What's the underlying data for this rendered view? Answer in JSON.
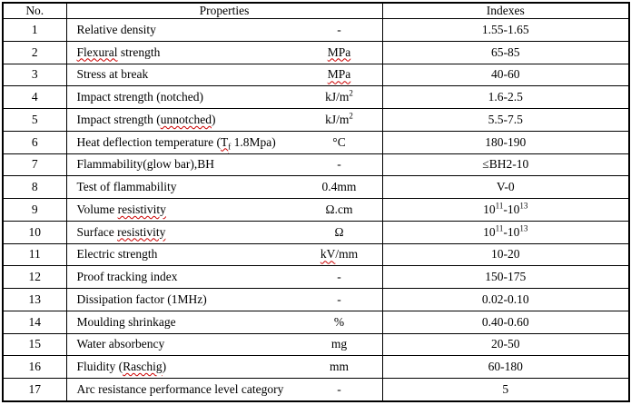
{
  "header": {
    "no": "No.",
    "properties": "Properties",
    "indexes": "Indexes"
  },
  "colors": {
    "border": "#000000",
    "text": "#000000",
    "background": "#ffffff",
    "spellcheck_squiggle": "#cc0000"
  },
  "rows": [
    {
      "no": "1",
      "property": [
        {
          "t": "Relative density"
        }
      ],
      "unit": [
        {
          "t": "-"
        }
      ],
      "index": [
        {
          "t": "1.55-1.65"
        }
      ]
    },
    {
      "no": "2",
      "property": [
        {
          "t": "Flexural",
          "sq": true
        },
        {
          "t": " strength"
        }
      ],
      "unit": [
        {
          "t": "MPa",
          "sq": true
        }
      ],
      "index": [
        {
          "t": "65-85"
        }
      ]
    },
    {
      "no": "3",
      "property": [
        {
          "t": "Stress at break"
        }
      ],
      "unit": [
        {
          "t": "MPa",
          "sq": true
        }
      ],
      "index": [
        {
          "t": "40-60"
        }
      ]
    },
    {
      "no": "4",
      "property": [
        {
          "t": "Impact strength (notched)"
        }
      ],
      "unit": [
        {
          "t": "kJ/m"
        },
        {
          "t": "2",
          "sup": true
        }
      ],
      "index": [
        {
          "t": "1.6-2.5"
        }
      ]
    },
    {
      "no": "5",
      "property": [
        {
          "t": "Impact strength ("
        },
        {
          "t": "unnotched",
          "sq": true
        },
        {
          "t": ")"
        }
      ],
      "unit": [
        {
          "t": "kJ/m"
        },
        {
          "t": "2",
          "sup": true
        }
      ],
      "index": [
        {
          "t": "5.5-7.5"
        }
      ]
    },
    {
      "no": "6",
      "property": [
        {
          "t": "Heat deflection temperature ("
        },
        {
          "t": "T",
          "sq": true
        },
        {
          "t": "f",
          "sq": true,
          "sub": true
        },
        {
          "t": " 1.8Mpa)"
        }
      ],
      "unit": [
        {
          "t": "°C"
        }
      ],
      "index": [
        {
          "t": "180-190"
        }
      ]
    },
    {
      "no": "7",
      "property": [
        {
          "t": "Flammability(glow bar),BH"
        }
      ],
      "unit": [
        {
          "t": "-"
        }
      ],
      "index": [
        {
          "t": "≤BH2-10"
        }
      ]
    },
    {
      "no": "8",
      "property": [
        {
          "t": "Test of flammability"
        }
      ],
      "unit": [
        {
          "t": "0.4mm"
        }
      ],
      "index": [
        {
          "t": "V-0"
        }
      ]
    },
    {
      "no": "9",
      "property": [
        {
          "t": "Volume "
        },
        {
          "t": "resistivity",
          "sq": true
        }
      ],
      "unit": [
        {
          "t": "Ω.cm"
        }
      ],
      "index": [
        {
          "t": "10"
        },
        {
          "t": "11",
          "sup": true
        },
        {
          "t": "-10"
        },
        {
          "t": "13",
          "sup": true
        }
      ]
    },
    {
      "no": "10",
      "property": [
        {
          "t": "Surface "
        },
        {
          "t": "resistivity",
          "sq": true
        }
      ],
      "unit": [
        {
          "t": "Ω"
        }
      ],
      "index": [
        {
          "t": "10"
        },
        {
          "t": "11",
          "sup": true
        },
        {
          "t": "-10"
        },
        {
          "t": "13",
          "sup": true
        }
      ]
    },
    {
      "no": "11",
      "property": [
        {
          "t": "Electric strength"
        }
      ],
      "unit": [
        {
          "t": "kV",
          "sq": true
        },
        {
          "t": "/mm"
        }
      ],
      "index": [
        {
          "t": "10-20"
        }
      ]
    },
    {
      "no": "12",
      "property": [
        {
          "t": "Proof tracking index"
        }
      ],
      "unit": [
        {
          "t": "-"
        }
      ],
      "index": [
        {
          "t": "150-175"
        }
      ]
    },
    {
      "no": "13",
      "property": [
        {
          "t": "Dissipation factor (1MHz)"
        }
      ],
      "unit": [
        {
          "t": "-"
        }
      ],
      "index": [
        {
          "t": "0.02-0.10"
        }
      ]
    },
    {
      "no": "14",
      "property": [
        {
          "t": "Moulding shrinkage"
        }
      ],
      "unit": [
        {
          "t": "%"
        }
      ],
      "index": [
        {
          "t": "0.40-0.60"
        }
      ]
    },
    {
      "no": "15",
      "property": [
        {
          "t": "Water absorbency"
        }
      ],
      "unit": [
        {
          "t": "mg"
        }
      ],
      "index": [
        {
          "t": "20-50"
        }
      ]
    },
    {
      "no": "16",
      "property": [
        {
          "t": "Fluidity ("
        },
        {
          "t": "Raschig",
          "sq": true
        },
        {
          "t": ")"
        }
      ],
      "unit": [
        {
          "t": "mm"
        }
      ],
      "index": [
        {
          "t": "60-180"
        }
      ]
    },
    {
      "no": "17",
      "property": [
        {
          "t": "Arc resistance performance level category"
        }
      ],
      "unit": [
        {
          "t": "-"
        }
      ],
      "index": [
        {
          "t": "5"
        }
      ]
    }
  ]
}
